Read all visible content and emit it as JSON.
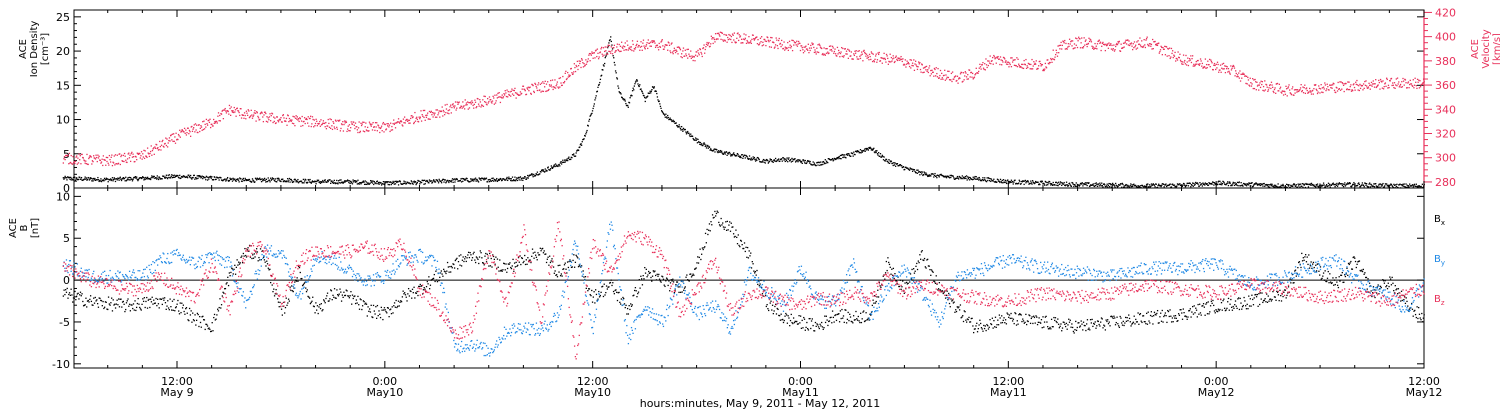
{
  "footer_label": "hours:minutes, May  9, 2011 - May 12, 2011",
  "time_axis": {
    "ticks": [
      {
        "line1": "12:00",
        "line2": "May 9"
      },
      {
        "line1": "0:00",
        "line2": "May10"
      },
      {
        "line1": "12:00",
        "line2": "May10"
      },
      {
        "line1": "0:00",
        "line2": "May11"
      },
      {
        "line1": "12:00",
        "line2": "May11"
      },
      {
        "line1": "0:00",
        "line2": "May12"
      },
      {
        "line1": "12:00",
        "line2": "May12"
      }
    ]
  },
  "chart_data": [
    {
      "type": "scatter",
      "panel": "top",
      "ylabel_lines": [
        "ACE",
        "Ion Density",
        "[cm⁻³]"
      ],
      "y2label_lines": [
        "ACE",
        "Velocity",
        "[km/s]"
      ],
      "ylim": [
        0,
        26
      ],
      "yticks": [
        0,
        5,
        10,
        15,
        20,
        25
      ],
      "y2lim": [
        275,
        422
      ],
      "y2ticks": [
        280,
        300,
        320,
        340,
        360,
        380,
        400,
        420
      ],
      "x_unit": "hours since 2011-05-09 00:00",
      "x_range": [
        5.4,
        84
      ],
      "series": [
        {
          "name": "Ion Density",
          "axis": "left",
          "color": "#000000",
          "x": [
            5.4,
            8,
            10,
            12,
            14,
            16,
            18,
            20,
            22,
            24,
            26,
            28,
            30,
            32,
            33,
            34,
            35,
            35.5,
            36,
            36.5,
            37,
            37.5,
            38,
            38.5,
            39,
            39.5,
            40,
            41,
            42,
            43,
            44,
            45,
            46,
            47,
            48,
            49,
            50,
            51,
            52,
            53,
            54,
            55,
            56,
            58,
            60,
            62,
            64,
            66,
            68,
            70,
            72,
            74,
            76,
            78,
            80,
            82,
            84
          ],
          "y": [
            1.5,
            1.3,
            1.5,
            1.8,
            1.5,
            1.2,
            1.3,
            1.0,
            1.0,
            0.8,
            0.9,
            1.2,
            1.3,
            1.5,
            2.5,
            3.5,
            5.0,
            7.5,
            12.0,
            17.0,
            22.0,
            14.0,
            12.0,
            16.0,
            13.0,
            15.0,
            11.0,
            9.0,
            7.0,
            5.5,
            5.0,
            4.5,
            4.0,
            4.3,
            4.0,
            3.6,
            4.5,
            5.0,
            6.0,
            4.0,
            3.0,
            2.2,
            1.8,
            1.5,
            1.0,
            0.8,
            0.6,
            0.5,
            0.4,
            0.5,
            0.8,
            0.6,
            0.4,
            0.5,
            0.6,
            0.4,
            0.4
          ]
        },
        {
          "name": "Velocity",
          "axis": "right",
          "color": "#e8305a",
          "x": [
            5.4,
            8,
            10,
            11,
            12,
            14,
            15,
            16,
            18,
            20,
            22,
            24,
            25,
            26,
            27,
            28,
            30,
            32,
            34,
            35,
            36,
            37,
            38,
            40,
            41,
            42,
            43,
            44,
            46,
            48,
            50,
            52,
            54,
            55,
            56,
            57,
            58,
            59,
            60,
            62,
            63,
            64,
            66,
            68,
            70,
            72,
            73,
            74,
            76,
            78,
            80,
            82,
            84
          ],
          "y": [
            300,
            298,
            302,
            310,
            318,
            330,
            340,
            336,
            332,
            330,
            326,
            325,
            330,
            335,
            338,
            342,
            348,
            356,
            362,
            375,
            385,
            390,
            393,
            394,
            388,
            384,
            400,
            400,
            396,
            392,
            388,
            384,
            380,
            374,
            370,
            366,
            370,
            382,
            380,
            376,
            392,
            396,
            392,
            396,
            382,
            376,
            372,
            362,
            356,
            358,
            360,
            362,
            362
          ]
        }
      ]
    },
    {
      "type": "scatter",
      "panel": "bottom",
      "ylabel_lines": [
        "ACE",
        "B",
        "[nT]"
      ],
      "ylim": [
        -10.5,
        11
      ],
      "yticks": [
        -10,
        -5,
        0,
        5,
        10
      ],
      "x_unit": "hours since 2011-05-09 00:00",
      "x_range": [
        5.4,
        84
      ],
      "legend": {
        "placement": "right"
      },
      "series": [
        {
          "name": "Bx",
          "legend_main": "B",
          "legend_sub": "x",
          "color": "#000000",
          "x": [
            5.4,
            7,
            9,
            11,
            12,
            13,
            14,
            15,
            16,
            17,
            18,
            19,
            20,
            21,
            22,
            23,
            24,
            25,
            26,
            27,
            28,
            29,
            30,
            31,
            32,
            33,
            34,
            35,
            36,
            37,
            38,
            39,
            40,
            41,
            42,
            43,
            44,
            45,
            46,
            47,
            48,
            49,
            50,
            51,
            52,
            53,
            54,
            55,
            56,
            58,
            60,
            62,
            64,
            66,
            68,
            70,
            72,
            74,
            76,
            77,
            78,
            79,
            80,
            81,
            82,
            83,
            84
          ],
          "y": [
            -1.5,
            -2.5,
            -3.0,
            -2.5,
            -3.0,
            -4.5,
            -5.5,
            0.5,
            3.5,
            3.0,
            -4.0,
            1.0,
            -3.5,
            -1.5,
            -2.0,
            -3.5,
            -4.0,
            -2.0,
            -1.0,
            0.5,
            2.0,
            3.0,
            2.5,
            1.5,
            2.5,
            3.5,
            1.0,
            2.5,
            -2.0,
            -0.5,
            -3.5,
            1.0,
            0.0,
            -1.0,
            2.0,
            8.0,
            6.0,
            3.0,
            -2.5,
            -4.5,
            -5.0,
            -5.5,
            -4.0,
            -4.5,
            -4.0,
            2.0,
            -1.0,
            3.0,
            -1.0,
            -5.5,
            -4.5,
            -5.0,
            -5.5,
            -5.0,
            -4.5,
            -4.0,
            -3.0,
            -2.5,
            -1.5,
            3.0,
            1.0,
            -0.5,
            2.5,
            -1.5,
            0.0,
            -3.0,
            -4.5
          ]
        },
        {
          "name": "By",
          "legend_main": "B",
          "legend_sub": "y",
          "color": "#1e88e5",
          "x": [
            5.4,
            7,
            9,
            10,
            11,
            12,
            13,
            14,
            15,
            16,
            17,
            18,
            19,
            20,
            21,
            22,
            23,
            24,
            25,
            26,
            27,
            28,
            29,
            30,
            31,
            32,
            33,
            34,
            35,
            36,
            37,
            38,
            39,
            40,
            41,
            42,
            43,
            44,
            45,
            46,
            47,
            48,
            49,
            50,
            51,
            52,
            53,
            54,
            55,
            56,
            57,
            58,
            60,
            62,
            64,
            66,
            68,
            70,
            72,
            74,
            76,
            78,
            79,
            80,
            81,
            82,
            83,
            84
          ],
          "y": [
            2.0,
            0.5,
            0.5,
            0.5,
            2.5,
            3.0,
            2.0,
            3.0,
            2.0,
            -3.0,
            3.5,
            3.5,
            -2.0,
            3.0,
            2.5,
            1.0,
            0.0,
            0.5,
            2.5,
            3.0,
            2.0,
            -8.0,
            -7.5,
            -8.5,
            -6.0,
            -5.5,
            -6.0,
            -4.0,
            5.0,
            -6.0,
            7.0,
            -7.0,
            -3.0,
            -5.0,
            0.0,
            -4.0,
            -3.0,
            -6.0,
            1.0,
            -1.0,
            -3.0,
            1.5,
            -2.5,
            -2.5,
            2.0,
            -4.5,
            -1.0,
            1.5,
            -1.5,
            -5.0,
            0.5,
            1.0,
            2.5,
            1.5,
            1.0,
            0.5,
            1.5,
            1.5,
            2.0,
            -0.5,
            0.5,
            2.0,
            2.5,
            0.0,
            -1.0,
            -2.0,
            -3.5,
            0.0
          ]
        },
        {
          "name": "Bz",
          "legend_main": "B",
          "legend_sub": "z",
          "color": "#e8305a",
          "x": [
            5.4,
            7,
            9,
            10,
            11,
            12,
            13,
            14,
            15,
            16,
            17,
            18,
            19,
            20,
            21,
            22,
            23,
            24,
            25,
            26,
            27,
            28,
            29,
            30,
            31,
            32,
            33,
            34,
            35,
            36,
            37,
            38,
            39,
            40,
            41,
            42,
            43,
            44,
            45,
            46,
            47,
            48,
            49,
            50,
            51,
            52,
            53,
            54,
            55,
            56,
            58,
            60,
            62,
            64,
            66,
            68,
            70,
            72,
            74,
            76,
            78,
            80,
            81,
            82,
            83,
            84
          ],
          "y": [
            1.5,
            0.0,
            -1.0,
            -1.0,
            0.5,
            -1.0,
            -2.0,
            2.0,
            -3.5,
            3.5,
            4.0,
            -3.0,
            2.5,
            3.5,
            3.5,
            3.5,
            4.0,
            3.0,
            4.5,
            -1.0,
            -3.0,
            -6.5,
            -5.5,
            4.0,
            -3.0,
            6.0,
            -5.0,
            7.0,
            -9.0,
            4.5,
            1.0,
            5.5,
            5.0,
            3.0,
            -4.0,
            -1.0,
            2.5,
            -4.0,
            -1.5,
            -1.5,
            -2.5,
            -3.0,
            -2.0,
            -2.5,
            -1.5,
            -2.0,
            0.5,
            -1.5,
            -0.5,
            -1.0,
            -2.0,
            -2.5,
            -1.5,
            -2.0,
            -1.5,
            -0.5,
            -1.0,
            -1.5,
            -0.5,
            -1.0,
            -2.0,
            -1.5,
            -2.0,
            -2.5,
            -1.5,
            -1.0
          ]
        }
      ]
    }
  ]
}
